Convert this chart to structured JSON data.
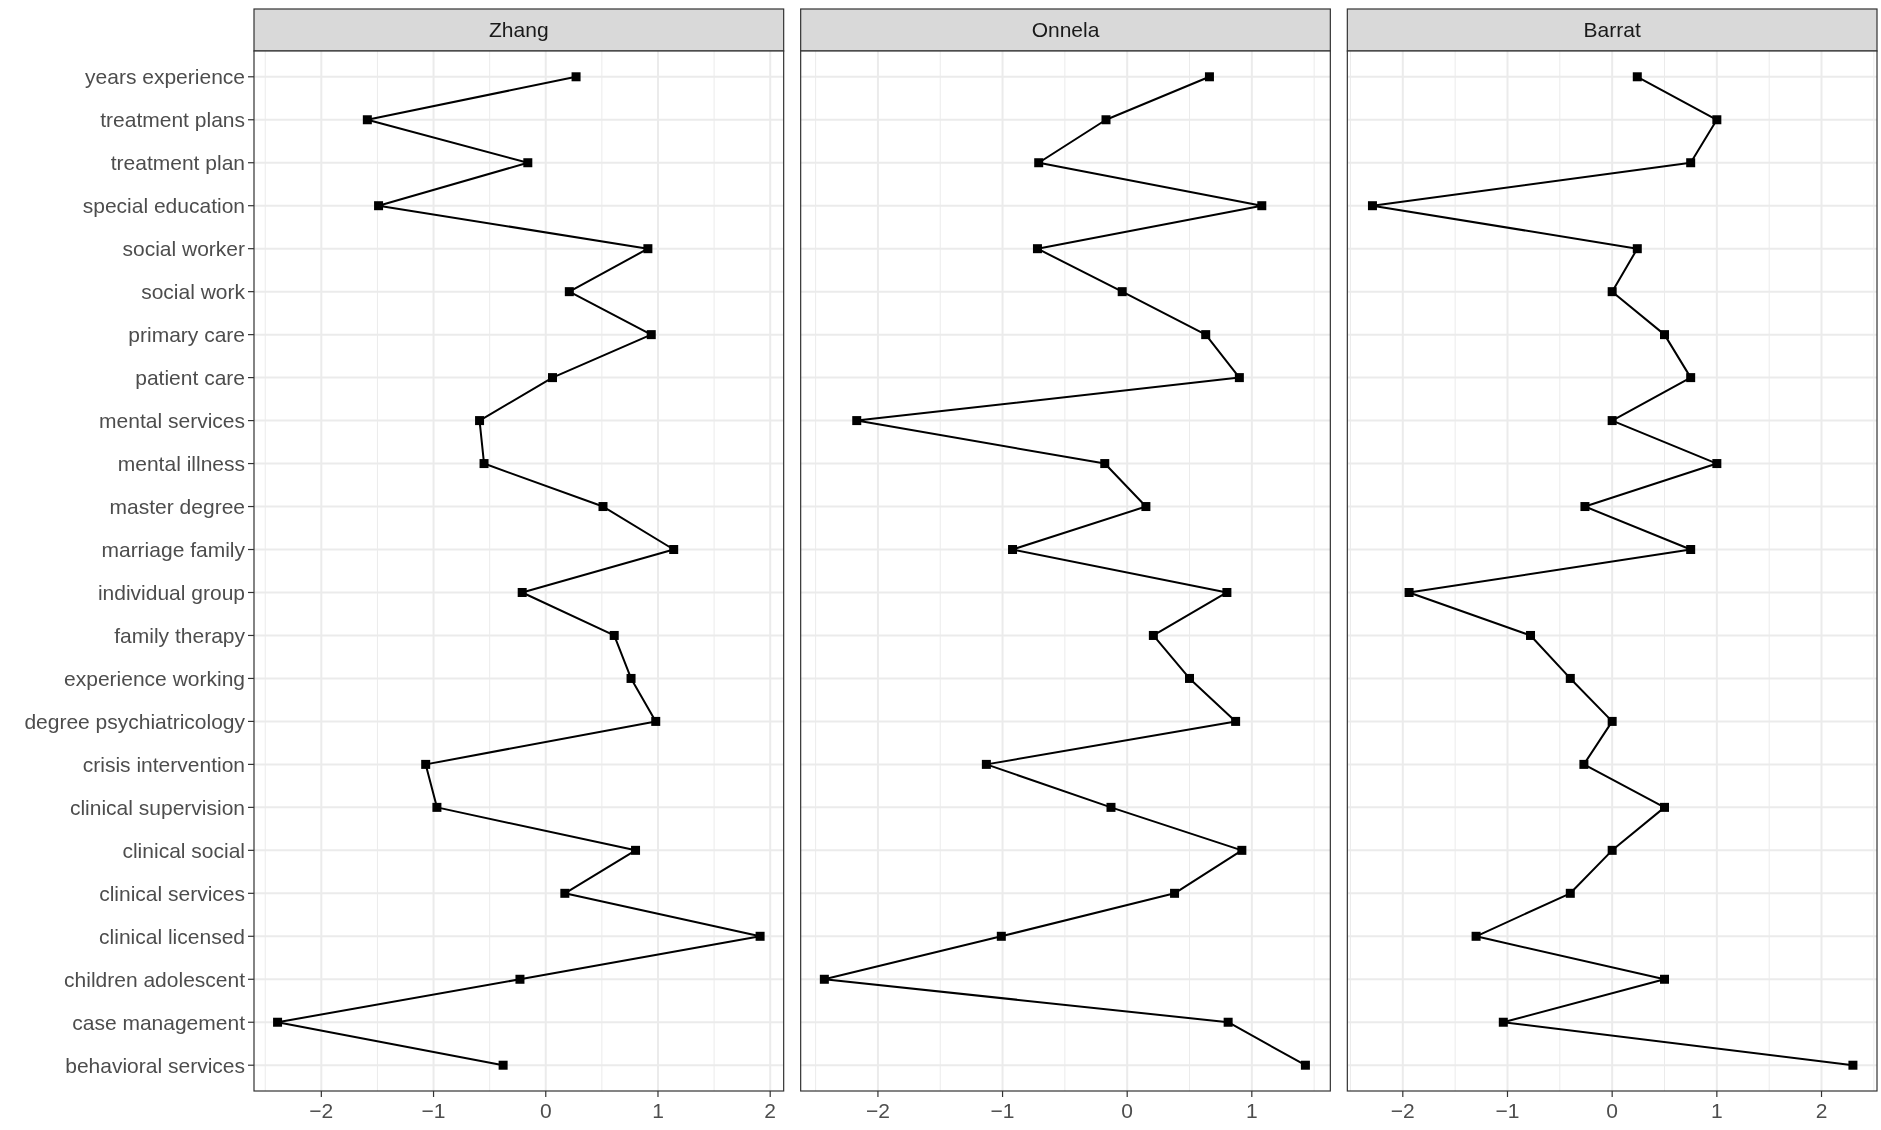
{
  "chart_data": [
    {
      "type": "line",
      "title": "Zhang",
      "orientation": "horizontal",
      "categories": [
        "years experience",
        "treatment plans",
        "treatment plan",
        "special education",
        "social worker",
        "social work",
        "primary care",
        "patient care",
        "mental services",
        "mental illness",
        "master degree",
        "marriage family",
        "individual group",
        "family therapy",
        "experience working",
        "degree psychiatricology",
        "crisis intervention",
        "clinical supervision",
        "clinical social",
        "clinical services",
        "clinical licensed",
        "children adolescent",
        "case management",
        "behavioral services"
      ],
      "series": [
        {
          "color": "#000000",
          "values": [
            0.27,
            -1.59,
            -0.16,
            -1.49,
            0.91,
            0.21,
            0.94,
            0.06,
            -0.59,
            -0.55,
            0.51,
            1.14,
            -0.21,
            0.61,
            0.76,
            0.98,
            -1.07,
            -0.97,
            0.8,
            0.17,
            1.91,
            -0.23,
            -2.39,
            -0.38
          ]
        }
      ],
      "xlim": [
        -2.6,
        2.12
      ],
      "xticks": [
        -2,
        -1,
        0,
        1,
        2
      ],
      "grid": true,
      "marker": "square"
    },
    {
      "type": "line",
      "title": "Onnela",
      "orientation": "horizontal",
      "categories": [
        null,
        null,
        null,
        null,
        null,
        null,
        null,
        null,
        null,
        null,
        null,
        null,
        null,
        null,
        null,
        null,
        null,
        null,
        null,
        null,
        null,
        null,
        null,
        null
      ],
      "series": [
        {
          "color": "#000000",
          "values": [
            0.66,
            -0.17,
            -0.71,
            1.08,
            -0.72,
            -0.04,
            0.63,
            0.9,
            -2.17,
            -0.18,
            0.15,
            -0.92,
            0.8,
            0.21,
            0.5,
            0.87,
            -1.13,
            -0.13,
            0.92,
            0.38,
            -1.01,
            -2.43,
            0.81,
            1.43
          ]
        }
      ],
      "xlim": [
        -2.62,
        1.63
      ],
      "xticks": [
        -2,
        -1,
        0,
        1
      ],
      "grid": true,
      "marker": "square",
      "tick_labels": "x"
    },
    {
      "type": "line",
      "title": "Barrat",
      "orientation": "horizontal",
      "categories": [
        null,
        null,
        null,
        null,
        null,
        null,
        null,
        null,
        null,
        null,
        null,
        null,
        null,
        null,
        null,
        null,
        null,
        null,
        null,
        null,
        null,
        null,
        null,
        null
      ],
      "series": [
        {
          "color": "#000000",
          "values": [
            0.24,
            1.0,
            0.75,
            -2.29,
            0.24,
            0.0,
            0.5,
            0.75,
            0.0,
            1.0,
            -0.26,
            0.75,
            -1.94,
            -0.78,
            -0.4,
            0.0,
            -0.27,
            0.5,
            0.0,
            -0.4,
            -1.3,
            0.5,
            -1.04,
            2.3
          ]
        }
      ],
      "xlim": [
        -2.53,
        2.53
      ],
      "xticks": [
        -2,
        -1,
        0,
        1,
        2
      ],
      "grid": true,
      "marker": "square",
      "tick_labels": "x"
    }
  ]
}
